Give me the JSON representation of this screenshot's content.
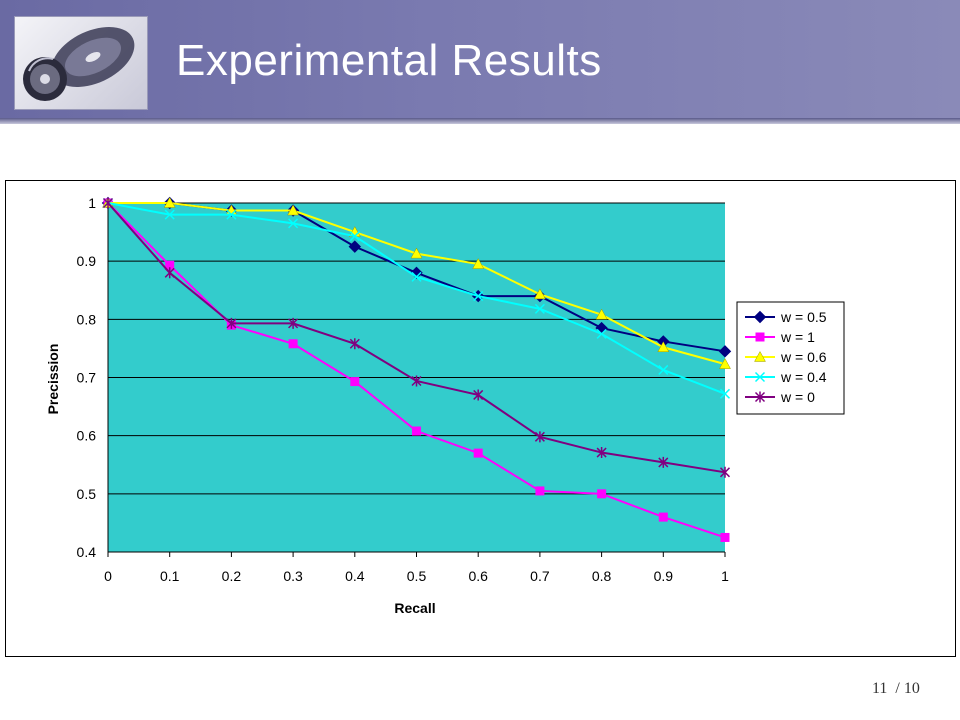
{
  "slide": {
    "title": "Experimental Results",
    "page_number": "11",
    "page_total": "/ 10"
  },
  "chart_data": {
    "type": "line",
    "xlabel": "Recall",
    "ylabel": "Precission",
    "xlim": [
      0,
      1
    ],
    "ylim": [
      0.4,
      1
    ],
    "x": [
      0,
      0.1,
      0.2,
      0.3,
      0.4,
      0.5,
      0.6,
      0.7,
      0.8,
      0.9,
      1
    ],
    "x_ticks": [
      "0",
      "0.1",
      "0.2",
      "0.3",
      "0.4",
      "0.5",
      "0.6",
      "0.7",
      "0.8",
      "0.9",
      "1"
    ],
    "y_ticks": [
      {
        "v": 1,
        "label": "1"
      },
      {
        "v": 0.9,
        "label": "0.9"
      },
      {
        "v": 0.8,
        "label": "0.8"
      },
      {
        "v": 0.7,
        "label": "0.7"
      },
      {
        "v": 0.6,
        "label": "0.6"
      },
      {
        "v": 0.5,
        "label": "0.5"
      },
      {
        "v": 0.4,
        "label": "0.4"
      }
    ],
    "grid": true,
    "plot_background": "#33CCCC",
    "legend_position": "right",
    "series": [
      {
        "name": "w = 0.5",
        "color": "#000080",
        "marker": "diamond",
        "values": [
          1,
          1,
          0.987,
          0.987,
          0.925,
          0.88,
          0.84,
          0.84,
          0.785,
          0.762,
          0.745
        ]
      },
      {
        "name": "w = 1",
        "color": "#FF00FF",
        "marker": "square",
        "values": [
          1,
          0.893,
          0.79,
          0.758,
          0.693,
          0.608,
          0.57,
          0.505,
          0.5,
          0.46,
          0.425
        ]
      },
      {
        "name": "w = 0.6",
        "color": "#FFFF00",
        "marker": "triangle",
        "values": [
          1,
          1,
          0.987,
          0.987,
          0.95,
          0.913,
          0.895,
          0.843,
          0.808,
          0.752,
          0.723
        ]
      },
      {
        "name": "w = 0.4",
        "color": "#00FFFF",
        "marker": "x",
        "values": [
          1,
          0.98,
          0.98,
          0.965,
          0.943,
          0.873,
          0.84,
          0.818,
          0.775,
          0.713,
          0.672
        ]
      },
      {
        "name": "w = 0",
        "color": "#800080",
        "marker": "star",
        "values": [
          1,
          0.88,
          0.793,
          0.793,
          0.758,
          0.694,
          0.67,
          0.598,
          0.571,
          0.554,
          0.537
        ]
      }
    ]
  }
}
